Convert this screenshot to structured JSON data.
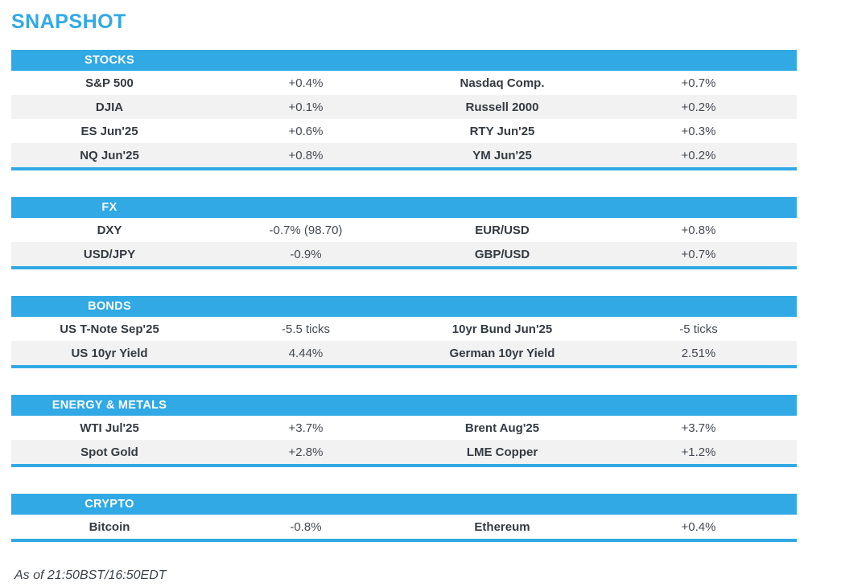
{
  "page": {
    "title": "SNAPSHOT",
    "footer": "As of 21:50BST/16:50EDT"
  },
  "colors": {
    "accent_blue": "#30a9e5",
    "row_alt_gray": "#f2f2f2",
    "label_text": "#343a42",
    "value_text": "#444a53"
  },
  "sections": [
    {
      "header": "STOCKS",
      "rows": [
        {
          "label1": "S&P 500",
          "value1": "+0.4%",
          "label2": "Nasdaq Comp.",
          "value2": "+0.7%"
        },
        {
          "label1": "DJIA",
          "value1": "+0.1%",
          "label2": "Russell 2000",
          "value2": "+0.2%"
        },
        {
          "label1": "ES Jun'25",
          "value1": "+0.6%",
          "label2": "RTY Jun'25",
          "value2": "+0.3%"
        },
        {
          "label1": "NQ Jun'25",
          "value1": "+0.8%",
          "label2": "YM Jun'25",
          "value2": "+0.2%"
        }
      ]
    },
    {
      "header": "FX",
      "rows": [
        {
          "label1": "DXY",
          "value1": "-0.7% (98.70)",
          "label2": "EUR/USD",
          "value2": "+0.8%"
        },
        {
          "label1": "USD/JPY",
          "value1": "-0.9%",
          "label2": "GBP/USD",
          "value2": "+0.7%"
        }
      ]
    },
    {
      "header": "BONDS",
      "rows": [
        {
          "label1": "US T-Note Sep'25",
          "value1": "-5.5 ticks",
          "label2": "10yr Bund Jun'25",
          "value2": "-5 ticks"
        },
        {
          "label1": "US 10yr Yield",
          "value1": "4.44%",
          "label2": "German 10yr Yield",
          "value2": "2.51%"
        }
      ]
    },
    {
      "header": "ENERGY & METALS",
      "rows": [
        {
          "label1": "WTI Jul'25",
          "value1": "+3.7%",
          "label2": "Brent Aug'25",
          "value2": "+3.7%"
        },
        {
          "label1": "Spot Gold",
          "value1": "+2.8%",
          "label2": "LME Copper",
          "value2": "+1.2%"
        }
      ]
    },
    {
      "header": "CRYPTO",
      "rows": [
        {
          "label1": "Bitcoin",
          "value1": "-0.8%",
          "label2": "Ethereum",
          "value2": "+0.4%"
        }
      ]
    }
  ]
}
